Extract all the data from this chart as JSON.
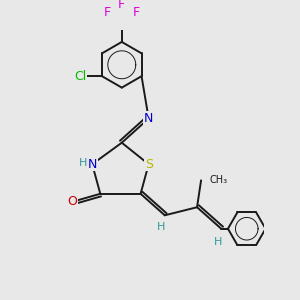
{
  "bg_color": "#e8e8e8",
  "bond_color": "#1a1a1a",
  "bond_width": 1.4,
  "S_color": "#b8b800",
  "N_color": "#0000cc",
  "O_color": "#cc0000",
  "Cl_color": "#00bb00",
  "F_color": "#dd00dd",
  "H_color": "#339999",
  "C_color": "#1a1a1a",
  "xlim": [
    -1.0,
    7.5
  ],
  "ylim": [
    -4.5,
    5.5
  ]
}
